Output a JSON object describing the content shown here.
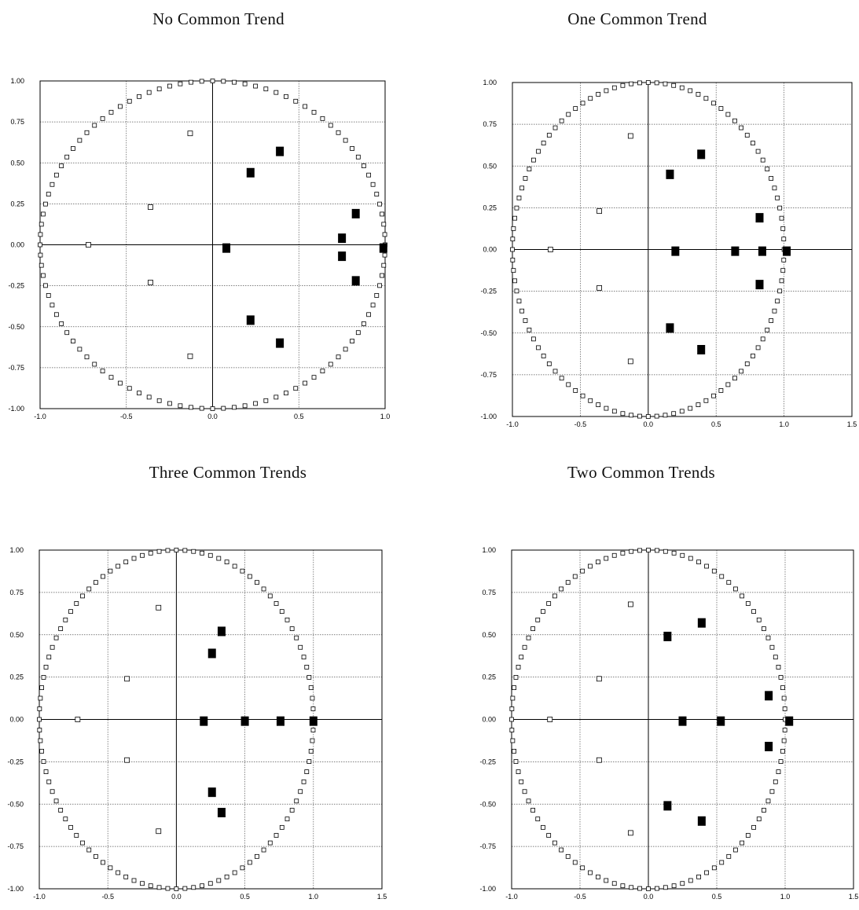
{
  "chart_data": [
    {
      "type": "scatter",
      "title": "No Common Trend",
      "xlim": [
        -1.0,
        1.0
      ],
      "ylim": [
        -1.0,
        1.0
      ],
      "x_ticks": [
        "-1.0",
        "-0.5",
        "0.0",
        "0.5",
        "1.0"
      ],
      "y_ticks": [
        "-1.00",
        "-0.75",
        "-0.50",
        "-0.25",
        "0.00",
        "0.25",
        "0.50",
        "0.75",
        "1.00"
      ],
      "grid": true,
      "unit_circle": true,
      "series": [
        {
          "marker": "open-square",
          "points": [
            [
              -0.72,
              0.0
            ],
            [
              -0.36,
              0.23
            ],
            [
              -0.36,
              -0.23
            ],
            [
              -0.13,
              0.68
            ],
            [
              -0.13,
              -0.68
            ]
          ]
        },
        {
          "marker": "filled-square",
          "points": [
            [
              0.08,
              -0.02
            ],
            [
              0.22,
              0.44
            ],
            [
              0.22,
              -0.46
            ],
            [
              0.39,
              0.57
            ],
            [
              0.39,
              -0.6
            ],
            [
              0.75,
              0.04
            ],
            [
              0.75,
              -0.07
            ],
            [
              0.83,
              0.19
            ],
            [
              0.83,
              -0.22
            ],
            [
              0.99,
              -0.02
            ]
          ]
        }
      ]
    },
    {
      "type": "scatter",
      "title": "One Common Trend",
      "xlim": [
        -1.0,
        1.5
      ],
      "ylim": [
        -1.0,
        1.0
      ],
      "x_ticks": [
        "-1.0",
        "-0.5",
        "0.0",
        "0.5",
        "1.0",
        "1.5"
      ],
      "y_ticks": [
        "-1.00",
        "-0.75",
        "-0.50",
        "-0.25",
        "0.00",
        "0.25",
        "0.50",
        "0.75",
        "1.00"
      ],
      "grid": true,
      "unit_circle": true,
      "series": [
        {
          "marker": "open-square",
          "points": [
            [
              -0.72,
              0.0
            ],
            [
              -0.36,
              0.23
            ],
            [
              -0.36,
              -0.23
            ],
            [
              -0.13,
              0.68
            ],
            [
              -0.13,
              -0.67
            ]
          ]
        },
        {
          "marker": "filled-square",
          "points": [
            [
              0.16,
              0.45
            ],
            [
              0.16,
              -0.47
            ],
            [
              0.2,
              -0.01
            ],
            [
              0.39,
              0.57
            ],
            [
              0.39,
              -0.6
            ],
            [
              0.64,
              -0.01
            ],
            [
              0.82,
              0.19
            ],
            [
              0.82,
              -0.21
            ],
            [
              0.84,
              -0.01
            ],
            [
              1.02,
              -0.01
            ]
          ]
        }
      ]
    },
    {
      "type": "scatter",
      "title": "Three Common  Trends",
      "xlim": [
        -1.0,
        1.5
      ],
      "ylim": [
        -1.0,
        1.0
      ],
      "x_ticks": [
        "-1.0",
        "-0.5",
        "0.0",
        "0.5",
        "1.0",
        "1.5"
      ],
      "y_ticks": [
        "-1.00",
        "-0.75",
        "-0.50",
        "-0.25",
        "0.00",
        "0.25",
        "0.50",
        "0.75",
        "1.00"
      ],
      "grid": true,
      "unit_circle": true,
      "series": [
        {
          "marker": "open-square",
          "points": [
            [
              -0.72,
              0.0
            ],
            [
              -0.36,
              0.24
            ],
            [
              -0.36,
              -0.24
            ],
            [
              -0.13,
              0.66
            ],
            [
              -0.13,
              -0.66
            ]
          ]
        },
        {
          "marker": "filled-square",
          "points": [
            [
              0.2,
              -0.01
            ],
            [
              0.26,
              0.39
            ],
            [
              0.26,
              -0.43
            ],
            [
              0.33,
              0.52
            ],
            [
              0.33,
              -0.55
            ],
            [
              0.5,
              -0.01
            ],
            [
              0.76,
              -0.01
            ],
            [
              1.0,
              -0.01
            ]
          ]
        }
      ]
    },
    {
      "type": "scatter",
      "title": "Two Common  Trends",
      "xlim": [
        -1.0,
        1.5
      ],
      "ylim": [
        -1.0,
        1.0
      ],
      "x_ticks": [
        "-1.0",
        "-0.5",
        "0.0",
        "0.5",
        "1.0",
        "1.5"
      ],
      "y_ticks": [
        "-1.00",
        "-0.75",
        "-0.50",
        "-0.25",
        "0.00",
        "0.25",
        "0.50",
        "0.75",
        "1.00"
      ],
      "grid": true,
      "unit_circle": true,
      "series": [
        {
          "marker": "open-square",
          "points": [
            [
              -0.72,
              0.0
            ],
            [
              -0.36,
              0.24
            ],
            [
              -0.36,
              -0.24
            ],
            [
              -0.13,
              0.68
            ],
            [
              -0.13,
              -0.67
            ]
          ]
        },
        {
          "marker": "filled-square",
          "points": [
            [
              0.14,
              0.49
            ],
            [
              0.14,
              -0.51
            ],
            [
              0.25,
              -0.01
            ],
            [
              0.39,
              0.57
            ],
            [
              0.39,
              -0.6
            ],
            [
              0.53,
              -0.01
            ],
            [
              0.88,
              0.14
            ],
            [
              0.88,
              -0.16
            ],
            [
              1.03,
              -0.01
            ]
          ]
        }
      ]
    }
  ]
}
